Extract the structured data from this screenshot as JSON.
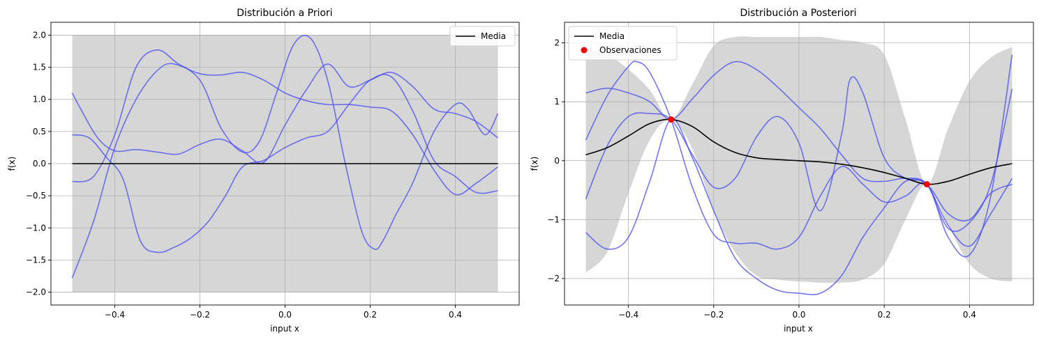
{
  "chart_data": [
    {
      "type": "line",
      "title": "Distribución a Priori",
      "xlabel": "input x",
      "ylabel": "f(x)",
      "xlim": [
        -0.55,
        0.55
      ],
      "ylim": [
        -2.2,
        2.2
      ],
      "xticks": [
        -0.4,
        -0.2,
        0.0,
        0.2,
        0.4
      ],
      "xtick_labels": [
        "−0.4",
        "−0.2",
        "0.0",
        "0.2",
        "0.4"
      ],
      "yticks": [
        -2.0,
        -1.5,
        -1.0,
        -0.5,
        0.0,
        0.5,
        1.0,
        1.5,
        2.0
      ],
      "ytick_labels": [
        "−2.0",
        "−1.5",
        "−1.0",
        "−0.5",
        "0.0",
        "0.5",
        "1.0",
        "1.5",
        "2.0"
      ],
      "grid": true,
      "legend_position": "top-right",
      "legend": [
        {
          "label": "Media",
          "kind": "line",
          "color": "#000000"
        }
      ],
      "band": {
        "x": [
          -0.5,
          -0.25,
          0.0,
          0.25,
          0.5
        ],
        "lower": [
          -2.0,
          -2.0,
          -2.0,
          -2.0,
          -2.0
        ],
        "upper": [
          2.0,
          2.0,
          2.0,
          2.0,
          2.0
        ],
        "color": "#bdbdbd"
      },
      "mean": {
        "name": "Media",
        "x": [
          -0.5,
          0.5
        ],
        "y": [
          0.0,
          0.0
        ],
        "color": "#000000"
      },
      "samples": [
        {
          "x": [
            -0.5,
            -0.48,
            -0.44,
            -0.4,
            -0.35,
            -0.3,
            -0.25,
            -0.2,
            -0.15,
            -0.1,
            -0.05,
            0.0,
            0.05,
            0.1,
            0.15,
            0.2,
            0.25,
            0.3,
            0.35,
            0.4,
            0.45,
            0.5
          ],
          "y": [
            1.1,
            0.85,
            0.4,
            0.2,
            0.22,
            0.18,
            0.15,
            0.3,
            0.38,
            0.2,
            0.02,
            0.6,
            1.15,
            1.55,
            1.2,
            1.3,
            1.42,
            1.2,
            0.85,
            0.78,
            0.65,
            0.4
          ]
        },
        {
          "x": [
            -0.5,
            -0.46,
            -0.42,
            -0.38,
            -0.34,
            -0.3,
            -0.26,
            -0.22,
            -0.18,
            -0.14,
            -0.1,
            -0.05,
            0.0,
            0.05,
            0.1,
            0.15,
            0.2,
            0.25,
            0.3,
            0.35,
            0.4,
            0.45,
            0.5
          ],
          "y": [
            0.45,
            0.4,
            0.1,
            -0.25,
            -1.2,
            -1.38,
            -1.3,
            -1.15,
            -0.9,
            -0.5,
            -0.05,
            0.05,
            0.25,
            0.4,
            0.5,
            0.92,
            1.3,
            1.35,
            0.82,
            0.05,
            -0.2,
            -0.45,
            -0.42
          ]
        },
        {
          "x": [
            -0.5,
            -0.45,
            -0.4,
            -0.35,
            -0.3,
            -0.25,
            -0.2,
            -0.15,
            -0.1,
            -0.05,
            0.0,
            0.05,
            0.1,
            0.15,
            0.2,
            0.25,
            0.3,
            0.35,
            0.4,
            0.45,
            0.5
          ],
          "y": [
            -0.28,
            -0.2,
            0.45,
            1.5,
            1.77,
            1.55,
            1.4,
            1.38,
            1.42,
            1.3,
            1.1,
            0.98,
            0.92,
            0.92,
            0.88,
            0.82,
            0.45,
            -0.1,
            -0.48,
            -0.3,
            -0.05
          ]
        },
        {
          "x": [
            -0.5,
            -0.45,
            -0.4,
            -0.35,
            -0.3,
            -0.26,
            -0.2,
            -0.15,
            -0.1,
            -0.06,
            -0.02,
            0.02,
            0.06,
            0.1,
            0.14,
            0.18,
            0.21,
            0.23,
            0.26,
            0.3,
            0.35,
            0.4,
            0.43,
            0.47,
            0.5
          ],
          "y": [
            -1.78,
            -0.9,
            0.25,
            1.0,
            1.45,
            1.55,
            1.3,
            0.55,
            0.18,
            0.35,
            1.1,
            1.85,
            1.95,
            1.3,
            0.05,
            -1.05,
            -1.33,
            -1.2,
            -0.8,
            -0.3,
            0.5,
            0.92,
            0.85,
            0.45,
            0.78
          ]
        }
      ],
      "sample_color": "#4b4ff0"
    },
    {
      "type": "line",
      "title": "Distribución a Posteriori",
      "xlabel": "input x",
      "ylabel": "f(x)",
      "xlim": [
        -0.55,
        0.55
      ],
      "ylim": [
        -2.45,
        2.35
      ],
      "xticks": [
        -0.4,
        -0.2,
        0.0,
        0.2,
        0.4
      ],
      "xtick_labels": [
        "−0.4",
        "−0.2",
        "0.0",
        "0.2",
        "0.4"
      ],
      "yticks": [
        -2,
        -1,
        0,
        1,
        2
      ],
      "ytick_labels": [
        "−2",
        "−1",
        "0",
        "1",
        "2"
      ],
      "grid": true,
      "legend_position": "top-left",
      "legend": [
        {
          "label": "Media",
          "kind": "line",
          "color": "#000000"
        },
        {
          "label": "Observaciones",
          "kind": "point",
          "color": "#ff0000"
        }
      ],
      "band": {
        "x": [
          -0.5,
          -0.45,
          -0.4,
          -0.35,
          -0.3,
          -0.25,
          -0.2,
          -0.15,
          -0.1,
          -0.05,
          0.0,
          0.05,
          0.1,
          0.15,
          0.2,
          0.25,
          0.3,
          0.35,
          0.4,
          0.45,
          0.5
        ],
        "lower": [
          -1.9,
          -1.55,
          -0.55,
          0.35,
          0.7,
          0.2,
          -0.85,
          -1.55,
          -1.95,
          -2.02,
          -2.05,
          -2.07,
          -2.07,
          -2.02,
          -1.75,
          -1.0,
          -0.4,
          -1.1,
          -1.75,
          -2.0,
          -2.05
        ],
        "upper": [
          1.9,
          1.8,
          1.55,
          1.2,
          0.7,
          1.3,
          1.95,
          2.1,
          2.1,
          2.1,
          2.1,
          2.1,
          2.05,
          2.0,
          1.8,
          0.7,
          -0.4,
          0.55,
          1.35,
          1.75,
          1.93
        ],
        "color": "#bdbdbd"
      },
      "mean": {
        "name": "Media",
        "x": [
          -0.5,
          -0.45,
          -0.4,
          -0.35,
          -0.3,
          -0.25,
          -0.2,
          -0.15,
          -0.1,
          -0.05,
          0.0,
          0.05,
          0.1,
          0.15,
          0.2,
          0.25,
          0.3,
          0.35,
          0.4,
          0.45,
          0.5
        ],
        "y": [
          0.1,
          0.22,
          0.42,
          0.63,
          0.7,
          0.58,
          0.32,
          0.14,
          0.05,
          0.02,
          0.0,
          -0.02,
          -0.06,
          -0.12,
          -0.2,
          -0.3,
          -0.4,
          -0.35,
          -0.23,
          -0.12,
          -0.05
        ],
        "color": "#000000"
      },
      "observations": {
        "name": "Observaciones",
        "x": [
          -0.3,
          0.3
        ],
        "y": [
          0.7,
          -0.4
        ],
        "color": "#ff0000"
      },
      "samples": [
        {
          "x": [
            -0.5,
            -0.45,
            -0.4,
            -0.35,
            -0.3,
            -0.25,
            -0.2,
            -0.15,
            -0.1,
            -0.05,
            0.0,
            0.05,
            0.1,
            0.15,
            0.2,
            0.25,
            0.3,
            0.35,
            0.4,
            0.45,
            0.5
          ],
          "y": [
            1.15,
            1.23,
            1.15,
            1.0,
            0.7,
            1.05,
            1.45,
            1.68,
            1.55,
            1.25,
            0.9,
            0.55,
            0.1,
            -0.3,
            -0.35,
            -0.3,
            -0.4,
            -1.15,
            -1.05,
            -0.4,
            1.22
          ]
        },
        {
          "x": [
            -0.5,
            -0.45,
            -0.4,
            -0.38,
            -0.35,
            -0.3,
            -0.25,
            -0.2,
            -0.15,
            -0.1,
            -0.05,
            0.0,
            0.05,
            0.1,
            0.15,
            0.2,
            0.25,
            0.3,
            0.35,
            0.4,
            0.45,
            0.5
          ],
          "y": [
            0.35,
            1.1,
            1.6,
            1.68,
            1.5,
            0.7,
            -0.45,
            -1.25,
            -1.4,
            -1.4,
            -1.5,
            -1.3,
            -0.6,
            -0.1,
            -0.4,
            -0.7,
            -0.6,
            -0.4,
            -1.3,
            -1.6,
            -0.6,
            1.8
          ]
        },
        {
          "x": [
            -0.5,
            -0.45,
            -0.4,
            -0.35,
            -0.3,
            -0.25,
            -0.2,
            -0.15,
            -0.1,
            -0.05,
            0.0,
            0.05,
            0.1,
            0.12,
            0.15,
            0.2,
            0.25,
            0.3,
            0.35,
            0.4,
            0.45,
            0.5
          ],
          "y": [
            -0.65,
            0.25,
            0.75,
            0.8,
            0.7,
            0.1,
            -0.45,
            -0.3,
            0.4,
            0.75,
            0.3,
            -0.85,
            0.45,
            1.38,
            1.15,
            0.05,
            -0.3,
            -0.4,
            -1.1,
            -1.45,
            -0.9,
            -0.3
          ]
        },
        {
          "x": [
            -0.5,
            -0.45,
            -0.4,
            -0.35,
            -0.3,
            -0.25,
            -0.2,
            -0.15,
            -0.1,
            -0.05,
            0.0,
            0.05,
            0.1,
            0.15,
            0.2,
            0.25,
            0.3,
            0.35,
            0.4,
            0.45,
            0.5
          ],
          "y": [
            -1.22,
            -1.5,
            -1.3,
            -0.35,
            0.7,
            0.05,
            -0.85,
            -1.65,
            -2.0,
            -2.2,
            -2.25,
            -2.25,
            -1.95,
            -1.3,
            -0.8,
            -0.35,
            -0.4,
            -0.9,
            -1.0,
            -0.55,
            -0.4
          ]
        }
      ],
      "sample_color": "#4b4ff0"
    }
  ]
}
